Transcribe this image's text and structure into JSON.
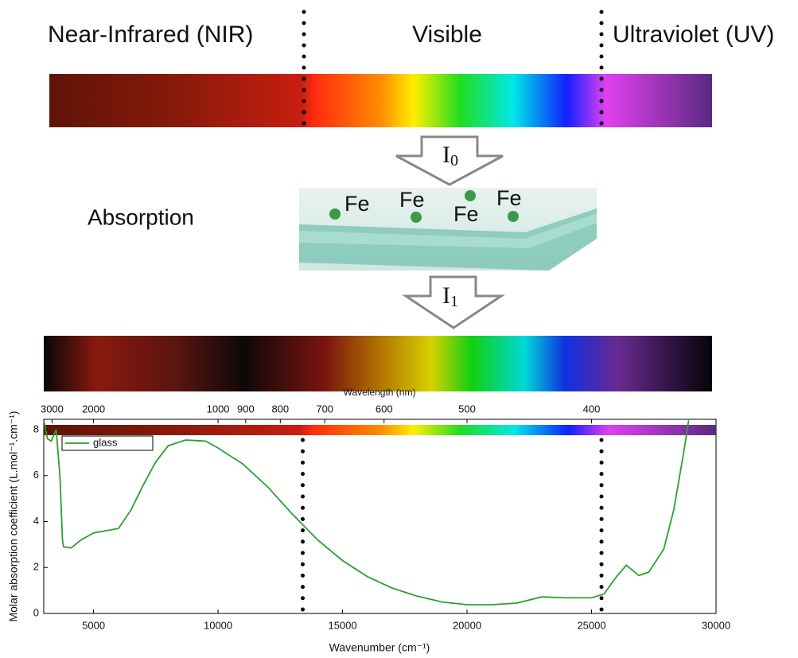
{
  "header": {
    "nir": "Near-Infrared (NIR)",
    "visible": "Visible",
    "uv": "Ultraviolet (UV)"
  },
  "incident": {
    "symbol": "I",
    "subscript": "0"
  },
  "transmitted": {
    "symbol": "I",
    "subscript": "1"
  },
  "sample": {
    "label": "Absorption",
    "ions": [
      "Fe",
      "Fe",
      "Fe",
      "Fe"
    ]
  },
  "chart_data": {
    "type": "line",
    "x_label": "Wavenumber (cm⁻¹)",
    "y_label": "Molar absorption coefficient (L.mol⁻¹.cm⁻¹)",
    "x2_label": "Wavelength (nm)",
    "xlim": [
      3000,
      30000
    ],
    "xticks": [
      5000,
      10000,
      15000,
      20000,
      25000,
      30000
    ],
    "ylim": [
      0,
      8.45
    ],
    "yticks": [
      0,
      2,
      4,
      6,
      8
    ],
    "x2ticks": [
      3000,
      2000,
      1000,
      900,
      800,
      700,
      600,
      500,
      400
    ],
    "vlines": [
      13400,
      25400
    ],
    "legend": "upper left",
    "x": [
      3000,
      3150,
      3300,
      3500,
      3650,
      3750,
      3800,
      4100,
      4500,
      5000,
      5500,
      6000,
      6500,
      7000,
      7500,
      8000,
      8700,
      9500,
      10000,
      11000,
      12000,
      13000,
      14000,
      15000,
      16000,
      17000,
      18000,
      19000,
      20000,
      21000,
      22000,
      23000,
      24000,
      25000,
      25500,
      26000,
      26400,
      26900,
      27300,
      27900,
      28300,
      28700,
      28900
    ],
    "series": [
      {
        "name": "glass",
        "color": "#2ca02c",
        "values": [
          8.4,
          7.6,
          7.5,
          8.0,
          6.0,
          3.2,
          2.9,
          2.85,
          3.2,
          3.5,
          3.6,
          3.7,
          4.5,
          5.6,
          6.6,
          7.3,
          7.55,
          7.5,
          7.2,
          6.5,
          5.5,
          4.3,
          3.2,
          2.3,
          1.6,
          1.1,
          0.75,
          0.5,
          0.38,
          0.38,
          0.45,
          0.72,
          0.68,
          0.68,
          0.85,
          1.6,
          2.1,
          1.65,
          1.8,
          2.8,
          4.5,
          7.0,
          8.4
        ]
      }
    ]
  }
}
